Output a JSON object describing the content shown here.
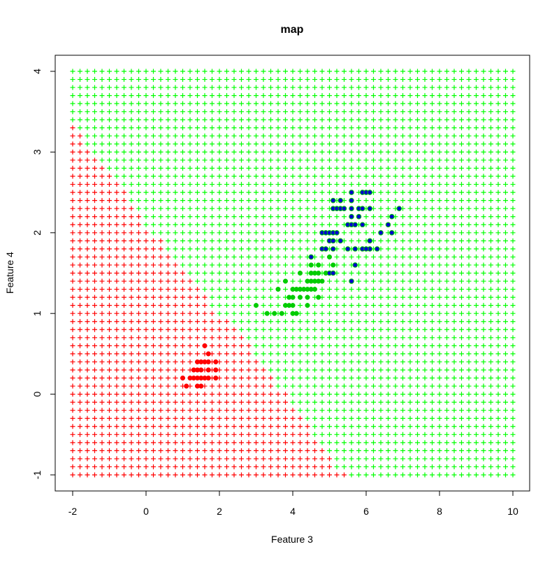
{
  "chart_data": {
    "type": "scatter",
    "title": "map",
    "xlabel": "Feature 3",
    "ylabel": "Feature 4",
    "xlim": [
      -2,
      10
    ],
    "ylim": [
      -1,
      4
    ],
    "x_ticks": [
      -2,
      0,
      2,
      4,
      6,
      8,
      10
    ],
    "y_ticks": [
      -1,
      0,
      1,
      2,
      3,
      4
    ],
    "x_tick_labels": [
      "-2",
      "0",
      "2",
      "4",
      "6",
      "8",
      "10"
    ],
    "y_tick_labels": [
      "-1",
      "0",
      "1",
      "2",
      "3",
      "4"
    ],
    "grid": false,
    "legend": "none",
    "colors": {
      "region_red": "#ff0000",
      "region_green": "#00ff00",
      "point_red": "#ff0000",
      "point_green": "#00cc00",
      "point_blue": "#0000cd",
      "point_blue_outline": "#00cc00"
    },
    "decision_grid": {
      "x_start": -2,
      "x_end": 10,
      "x_step": 0.2,
      "y_start": -1,
      "y_end": 4,
      "y_step": 0.1,
      "marker": "plus",
      "red_region_max_x_by_y": [
        {
          "y": -1.0,
          "max_x": 5.4
        },
        {
          "y": -0.9,
          "max_x": 5.0
        },
        {
          "y": -0.8,
          "max_x": 5.0
        },
        {
          "y": -0.7,
          "max_x": 4.8
        },
        {
          "y": -0.6,
          "max_x": 4.6
        },
        {
          "y": -0.5,
          "max_x": 4.4
        },
        {
          "y": -0.4,
          "max_x": 4.4
        },
        {
          "y": -0.3,
          "max_x": 4.2
        },
        {
          "y": -0.2,
          "max_x": 4.0
        },
        {
          "y": -0.1,
          "max_x": 3.8
        },
        {
          "y": 0.0,
          "max_x": 3.8
        },
        {
          "y": 0.1,
          "max_x": 3.4
        },
        {
          "y": 0.2,
          "max_x": 3.4
        },
        {
          "y": 0.3,
          "max_x": 3.2
        },
        {
          "y": 0.4,
          "max_x": 3.0
        },
        {
          "y": 0.5,
          "max_x": 2.8
        },
        {
          "y": 0.6,
          "max_x": 2.8
        },
        {
          "y": 0.7,
          "max_x": 2.6
        },
        {
          "y": 0.8,
          "max_x": 2.4
        },
        {
          "y": 0.9,
          "max_x": 2.2
        },
        {
          "y": 1.0,
          "max_x": 1.8
        },
        {
          "y": 1.1,
          "max_x": 1.6
        },
        {
          "y": 1.2,
          "max_x": 1.6
        },
        {
          "y": 1.3,
          "max_x": 1.4
        },
        {
          "y": 1.4,
          "max_x": 1.2
        },
        {
          "y": 1.5,
          "max_x": 1.0
        },
        {
          "y": 1.6,
          "max_x": 0.8
        },
        {
          "y": 1.7,
          "max_x": 0.6
        },
        {
          "y": 1.8,
          "max_x": 0.4
        },
        {
          "y": 1.9,
          "max_x": 0.4
        },
        {
          "y": 2.0,
          "max_x": 0.0
        },
        {
          "y": 2.1,
          "max_x": -0.2
        },
        {
          "y": 2.2,
          "max_x": -0.2
        },
        {
          "y": 2.3,
          "max_x": -0.4
        },
        {
          "y": 2.4,
          "max_x": -0.6
        },
        {
          "y": 2.5,
          "max_x": -0.6
        },
        {
          "y": 2.6,
          "max_x": -0.8
        },
        {
          "y": 2.7,
          "max_x": -1.0
        },
        {
          "y": 2.8,
          "max_x": -1.2
        },
        {
          "y": 2.9,
          "max_x": -1.4
        },
        {
          "y": 3.0,
          "max_x": -1.6
        },
        {
          "y": 3.1,
          "max_x": -1.8
        },
        {
          "y": 3.2,
          "max_x": -1.8
        },
        {
          "y": 3.3,
          "max_x": -2.0
        }
      ]
    },
    "series": [
      {
        "class": "red",
        "marker": "filled-circle",
        "points": [
          [
            1.6,
            0.6
          ],
          [
            1.7,
            0.5
          ],
          [
            1.4,
            0.4
          ],
          [
            1.5,
            0.4
          ],
          [
            1.6,
            0.4
          ],
          [
            1.7,
            0.4
          ],
          [
            1.9,
            0.4
          ],
          [
            1.3,
            0.3
          ],
          [
            1.4,
            0.3
          ],
          [
            1.5,
            0.3
          ],
          [
            1.7,
            0.3
          ],
          [
            1.9,
            0.3
          ],
          [
            1.0,
            0.2
          ],
          [
            1.2,
            0.2
          ],
          [
            1.3,
            0.2
          ],
          [
            1.4,
            0.2
          ],
          [
            1.5,
            0.2
          ],
          [
            1.6,
            0.2
          ],
          [
            1.7,
            0.2
          ],
          [
            1.9,
            0.2
          ],
          [
            1.1,
            0.1
          ],
          [
            1.4,
            0.1
          ],
          [
            1.5,
            0.1
          ]
        ]
      },
      {
        "class": "green",
        "marker": "filled-circle",
        "points": [
          [
            3.0,
            1.1
          ],
          [
            3.3,
            1.0
          ],
          [
            3.5,
            1.0
          ],
          [
            3.7,
            1.0
          ],
          [
            4.0,
            1.0
          ],
          [
            4.1,
            1.0
          ],
          [
            3.8,
            1.1
          ],
          [
            3.9,
            1.1
          ],
          [
            4.0,
            1.1
          ],
          [
            4.4,
            1.1
          ],
          [
            3.9,
            1.2
          ],
          [
            4.0,
            1.2
          ],
          [
            4.2,
            1.2
          ],
          [
            4.4,
            1.2
          ],
          [
            4.7,
            1.2
          ],
          [
            3.6,
            1.3
          ],
          [
            4.0,
            1.3
          ],
          [
            4.1,
            1.3
          ],
          [
            4.2,
            1.3
          ],
          [
            4.3,
            1.3
          ],
          [
            4.4,
            1.3
          ],
          [
            4.5,
            1.3
          ],
          [
            4.6,
            1.3
          ],
          [
            3.8,
            1.4
          ],
          [
            4.4,
            1.4
          ],
          [
            4.5,
            1.4
          ],
          [
            4.6,
            1.4
          ],
          [
            4.7,
            1.4
          ],
          [
            4.8,
            1.4
          ],
          [
            4.2,
            1.5
          ],
          [
            4.5,
            1.5
          ],
          [
            4.6,
            1.5
          ],
          [
            4.7,
            1.5
          ],
          [
            4.9,
            1.5
          ],
          [
            5.1,
            1.5
          ],
          [
            4.5,
            1.6
          ],
          [
            4.7,
            1.6
          ],
          [
            5.1,
            1.6
          ],
          [
            4.8,
            1.8
          ],
          [
            5.0,
            1.7
          ],
          [
            4.9,
            1.8
          ],
          [
            5.0,
            1.5
          ],
          [
            4.8,
            1.8
          ]
        ]
      },
      {
        "class": "blue",
        "marker": "filled-circle",
        "points": [
          [
            5.6,
            2.5
          ],
          [
            5.9,
            2.5
          ],
          [
            6.0,
            2.5
          ],
          [
            6.1,
            2.5
          ],
          [
            5.1,
            2.4
          ],
          [
            5.3,
            2.4
          ],
          [
            5.6,
            2.4
          ],
          [
            5.1,
            2.3
          ],
          [
            5.2,
            2.3
          ],
          [
            5.3,
            2.3
          ],
          [
            5.4,
            2.3
          ],
          [
            5.6,
            2.3
          ],
          [
            5.8,
            2.3
          ],
          [
            5.9,
            2.3
          ],
          [
            6.1,
            2.3
          ],
          [
            6.9,
            2.3
          ],
          [
            5.6,
            2.2
          ],
          [
            5.8,
            2.2
          ],
          [
            6.7,
            2.2
          ],
          [
            5.5,
            2.1
          ],
          [
            5.6,
            2.1
          ],
          [
            5.7,
            2.1
          ],
          [
            5.9,
            2.1
          ],
          [
            6.6,
            2.1
          ],
          [
            4.8,
            2.0
          ],
          [
            4.9,
            2.0
          ],
          [
            5.0,
            2.0
          ],
          [
            5.1,
            2.0
          ],
          [
            5.2,
            2.0
          ],
          [
            6.4,
            2.0
          ],
          [
            6.7,
            2.0
          ],
          [
            5.0,
            1.9
          ],
          [
            5.1,
            1.9
          ],
          [
            5.3,
            1.9
          ],
          [
            6.1,
            1.9
          ],
          [
            4.8,
            1.8
          ],
          [
            4.9,
            1.8
          ],
          [
            5.1,
            1.8
          ],
          [
            5.5,
            1.8
          ],
          [
            5.7,
            1.8
          ],
          [
            5.9,
            1.8
          ],
          [
            6.1,
            1.8
          ],
          [
            6.3,
            1.8
          ],
          [
            4.5,
            1.7
          ],
          [
            6.0,
            1.8
          ],
          [
            5.7,
            1.6
          ],
          [
            5.6,
            1.4
          ],
          [
            5.0,
            1.5
          ],
          [
            5.1,
            1.5
          ]
        ]
      }
    ]
  }
}
